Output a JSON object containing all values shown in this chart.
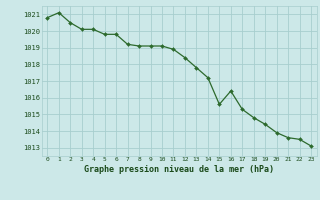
{
  "x": [
    0,
    1,
    2,
    3,
    4,
    5,
    6,
    7,
    8,
    9,
    10,
    11,
    12,
    13,
    14,
    15,
    16,
    17,
    18,
    19,
    20,
    21,
    22,
    23
  ],
  "y": [
    1020.8,
    1021.1,
    1020.5,
    1020.1,
    1020.1,
    1019.8,
    1019.8,
    1019.2,
    1019.1,
    1019.1,
    1019.1,
    1018.9,
    1018.4,
    1017.8,
    1017.2,
    1015.6,
    1016.4,
    1015.3,
    1014.8,
    1014.4,
    1013.9,
    1013.6,
    1013.5,
    1013.1
  ],
  "line_color": "#2d6a2d",
  "marker_color": "#2d6a2d",
  "bg_color": "#cce8e8",
  "grid_color": "#a8cece",
  "text_color": "#1a4a1a",
  "title": "Graphe pression niveau de la mer (hPa)",
  "ylim_min": 1012.5,
  "ylim_max": 1021.5,
  "yticks": [
    1013,
    1014,
    1015,
    1016,
    1017,
    1018,
    1019,
    1020,
    1021
  ],
  "xticks": [
    0,
    1,
    2,
    3,
    4,
    5,
    6,
    7,
    8,
    9,
    10,
    11,
    12,
    13,
    14,
    15,
    16,
    17,
    18,
    19,
    20,
    21,
    22,
    23
  ]
}
